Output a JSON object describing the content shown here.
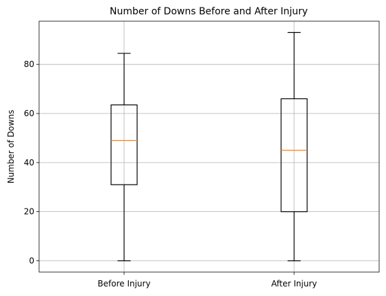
{
  "chart_data": {
    "type": "box",
    "title": "Number of Downs Before and After Injury",
    "xlabel": "",
    "ylabel": "Number of Downs",
    "categories": [
      "Before Injury",
      "After Injury"
    ],
    "boxes": [
      {
        "name": "Before Injury",
        "whisker_low": 0,
        "q1": 31,
        "median": 49,
        "q3": 63.5,
        "whisker_high": 84.5
      },
      {
        "name": "After Injury",
        "whisker_low": 0,
        "q1": 20,
        "median": 45,
        "q3": 66,
        "whisker_high": 93
      }
    ],
    "ylim": [
      -4.6,
      97.6
    ],
    "yticks": [
      0,
      20,
      40,
      60,
      80
    ],
    "grid": true,
    "colors": {
      "box": "#000000",
      "median": "#ff7f0e",
      "grid": "#b0b0b0"
    }
  }
}
